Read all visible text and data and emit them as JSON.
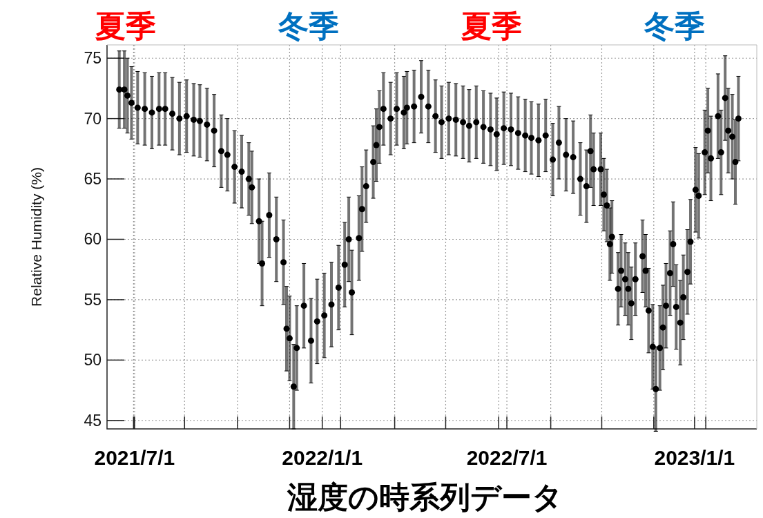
{
  "chart_data": {
    "type": "scatter",
    "xlabel": "湿度の時系列データ",
    "ylabel": "Relative Humidity (%)",
    "annotations": [
      "夏季",
      "冬季",
      "夏季",
      "冬季"
    ],
    "xlim": [
      "2021-06-04",
      "2023-03-03"
    ],
    "ylim": [
      44.3,
      76.1
    ],
    "xticks": [
      {
        "value": "2021-06-30",
        "label": null
      },
      {
        "value": "2021-07-01",
        "label": "2021/7/1"
      },
      {
        "value": "2021-08-19",
        "label": null
      },
      {
        "value": "2021-10-10",
        "label": null
      },
      {
        "value": "2021-11-30",
        "label": null
      },
      {
        "value": "2022-01-01",
        "label": "2022/1/1"
      },
      {
        "value": "2022-01-19",
        "label": null
      },
      {
        "value": "2022-03-13",
        "label": null
      },
      {
        "value": "2022-05-02",
        "label": null
      },
      {
        "value": "2022-06-23",
        "label": null
      },
      {
        "value": "2022-07-01",
        "label": "2022/7/1"
      },
      {
        "value": "2022-08-13",
        "label": null
      },
      {
        "value": "2022-10-02",
        "label": null
      },
      {
        "value": "2022-11-22",
        "label": null
      },
      {
        "value": "2023-01-01",
        "label": "2023/1/1"
      },
      {
        "value": "2023-01-12",
        "label": null
      }
    ],
    "yticks": [
      45,
      50,
      55,
      60,
      65,
      70,
      75
    ],
    "grid": true,
    "marker": "circle",
    "series": [
      {
        "color": "#000000",
        "x": [
          "2021-06-16",
          "2021-06-21",
          "2021-06-24",
          "2021-06-28",
          "2021-07-04",
          "2021-07-11",
          "2021-07-18",
          "2021-07-25",
          "2021-07-31",
          "2021-08-07",
          "2021-08-14",
          "2021-08-21",
          "2021-08-28",
          "2021-09-03",
          "2021-09-10",
          "2021-09-17",
          "2021-09-24",
          "2021-09-30",
          "2021-10-07",
          "2021-10-14",
          "2021-10-21",
          "2021-10-24",
          "2021-10-31",
          "2021-11-03",
          "2021-11-10",
          "2021-11-17",
          "2021-11-24",
          "2021-11-27",
          "2021-11-30",
          "2021-12-04",
          "2021-12-07",
          "2021-12-14",
          "2021-12-21",
          "2021-12-27",
          "2022-01-03",
          "2022-01-10",
          "2022-01-17",
          "2022-01-23",
          "2022-01-27",
          "2022-01-30",
          "2022-02-06",
          "2022-02-09",
          "2022-02-13",
          "2022-02-20",
          "2022-02-23",
          "2022-02-26",
          "2022-03-02",
          "2022-03-09",
          "2022-03-15",
          "2022-03-22",
          "2022-03-25",
          "2022-04-01",
          "2022-04-08",
          "2022-04-15",
          "2022-04-22",
          "2022-04-28",
          "2022-05-05",
          "2022-05-12",
          "2022-05-19",
          "2022-05-25",
          "2022-06-01",
          "2022-06-08",
          "2022-06-15",
          "2022-06-21",
          "2022-06-28",
          "2022-07-05",
          "2022-07-12",
          "2022-07-19",
          "2022-07-25",
          "2022-08-01",
          "2022-08-08",
          "2022-08-15",
          "2022-08-21",
          "2022-08-28",
          "2022-09-04",
          "2022-09-11",
          "2022-09-17",
          "2022-09-21",
          "2022-09-24",
          "2022-10-01",
          "2022-10-04",
          "2022-10-07",
          "2022-10-10",
          "2022-10-12",
          "2022-10-18",
          "2022-10-21",
          "2022-10-25",
          "2022-10-28",
          "2022-10-31",
          "2022-11-04",
          "2022-11-11",
          "2022-11-14",
          "2022-11-17",
          "2022-11-21",
          "2022-11-24",
          "2022-11-28",
          "2022-12-01",
          "2022-12-04",
          "2022-12-08",
          "2022-12-11",
          "2022-12-14",
          "2022-12-18",
          "2022-12-21",
          "2022-12-25",
          "2022-12-28",
          "2023-01-02",
          "2023-01-05",
          "2023-01-11",
          "2023-01-14",
          "2023-01-17",
          "2023-01-24",
          "2023-01-27",
          "2023-01-31",
          "2023-02-03",
          "2023-02-07",
          "2023-02-10",
          "2023-02-13"
        ],
        "values": [
          72.4,
          72.4,
          71.9,
          71.3,
          70.9,
          70.8,
          70.5,
          70.8,
          70.8,
          70.4,
          70.0,
          70.2,
          69.9,
          69.8,
          69.5,
          69.0,
          67.3,
          67.0,
          66.0,
          65.6,
          65.0,
          64.3,
          61.5,
          58.0,
          62.0,
          60.0,
          58.1,
          52.6,
          51.8,
          47.8,
          51.0,
          54.5,
          51.6,
          53.2,
          53.7,
          54.6,
          56.0,
          57.9,
          60.0,
          55.6,
          60.1,
          62.5,
          64.4,
          66.4,
          67.8,
          69.3,
          70.8,
          70.0,
          70.8,
          70.5,
          70.9,
          71.0,
          71.8,
          71.0,
          70.2,
          69.7,
          70.0,
          69.9,
          69.7,
          69.4,
          69.7,
          69.3,
          69.1,
          68.7,
          69.2,
          69.1,
          68.8,
          68.6,
          68.4,
          68.2,
          68.6,
          66.6,
          68.0,
          67.0,
          66.8,
          65.0,
          64.4,
          67.3,
          65.8,
          65.8,
          63.7,
          62.8,
          59.6,
          60.2,
          55.9,
          57.4,
          56.7,
          55.9,
          54.7,
          56.7,
          58.6,
          57.4,
          54.1,
          51.1,
          47.6,
          51.0,
          52.7,
          54.5,
          57.2,
          59.6,
          54.4,
          53.1,
          55.2,
          57.3,
          59.8,
          64.1,
          63.6,
          67.2,
          69.0,
          66.7,
          70.2,
          67.2,
          71.7,
          69.0,
          68.5,
          66.4,
          70.0
        ],
        "errors": [
          3.2,
          3.2,
          3.1,
          3.0,
          3.0,
          3.0,
          3.0,
          3.0,
          3.0,
          3.0,
          3.0,
          3.0,
          3.0,
          3.0,
          3.0,
          3.0,
          3.0,
          3.0,
          3.0,
          3.0,
          3.0,
          3.0,
          3.5,
          3.5,
          3.5,
          3.5,
          3.5,
          3.5,
          3.5,
          3.5,
          3.5,
          3.5,
          3.5,
          3.5,
          3.5,
          3.5,
          3.5,
          3.5,
          3.5,
          3.5,
          3.5,
          3.5,
          3.0,
          3.0,
          3.0,
          3.0,
          3.0,
          3.0,
          3.0,
          3.0,
          3.0,
          3.0,
          3.0,
          3.0,
          3.0,
          3.0,
          3.0,
          3.0,
          3.0,
          3.0,
          3.0,
          3.0,
          3.0,
          3.0,
          3.0,
          3.0,
          3.0,
          3.0,
          3.0,
          3.0,
          3.0,
          3.0,
          3.0,
          3.0,
          3.0,
          3.0,
          3.0,
          3.0,
          3.0,
          3.0,
          3.0,
          3.0,
          3.0,
          3.0,
          3.0,
          3.0,
          3.0,
          3.0,
          3.0,
          3.0,
          3.0,
          3.0,
          3.5,
          3.5,
          3.5,
          3.5,
          3.5,
          3.5,
          3.5,
          3.5,
          3.5,
          3.5,
          3.5,
          3.5,
          3.5,
          3.5,
          3.5,
          3.5,
          3.5,
          3.5,
          3.5,
          3.5,
          3.5,
          3.5,
          3.5,
          3.5,
          3.5
        ]
      }
    ]
  }
}
